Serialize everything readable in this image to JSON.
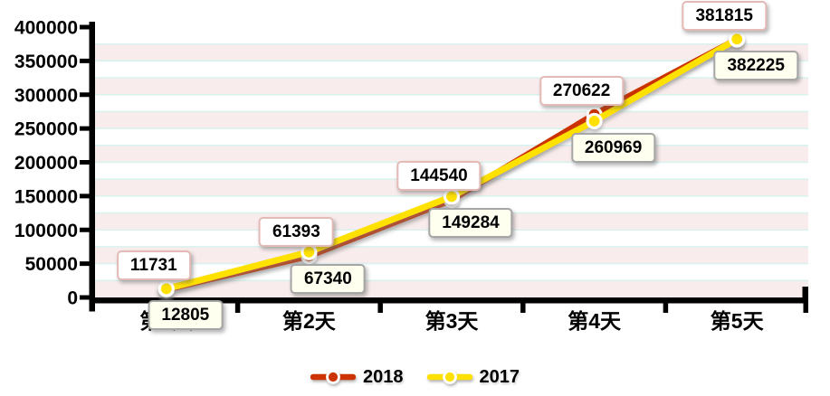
{
  "chart_data": {
    "type": "line",
    "title": "",
    "categories": [
      "第1天",
      "第2天",
      "第3天",
      "第4天",
      "第5天"
    ],
    "series": [
      {
        "name": "2018",
        "color": "#cc3300",
        "values": [
          11731,
          61393,
          144540,
          270622,
          381815
        ]
      },
      {
        "name": "2017",
        "color": "#ffe100",
        "values": [
          12805,
          67340,
          149284,
          260969,
          382225
        ]
      }
    ],
    "y_axis": {
      "min": 0,
      "max": 400000,
      "tick_step": 50000,
      "tick_labels": [
        "0",
        "50000",
        "100000",
        "150000",
        "200000",
        "250000",
        "300000",
        "350000",
        "400000"
      ]
    },
    "x_axis": {
      "tick_labels": [
        "第1天",
        "第2天",
        "第3天",
        "第4天",
        "第5天"
      ]
    },
    "legend": {
      "position": "bottom",
      "entries": [
        "2018",
        "2017"
      ]
    },
    "grid": {
      "band_colors": [
        "#ffffff",
        "#f9ecec"
      ],
      "line_color": "#d8f2ee"
    },
    "label_boxes": {
      "2018": {
        "bg": "#ffffff",
        "border": "#e3bab6"
      },
      "2017": {
        "bg": "#fffff0",
        "border": "#a6a6a6"
      }
    },
    "axis_color": "#000000",
    "text_color": "#000000"
  }
}
